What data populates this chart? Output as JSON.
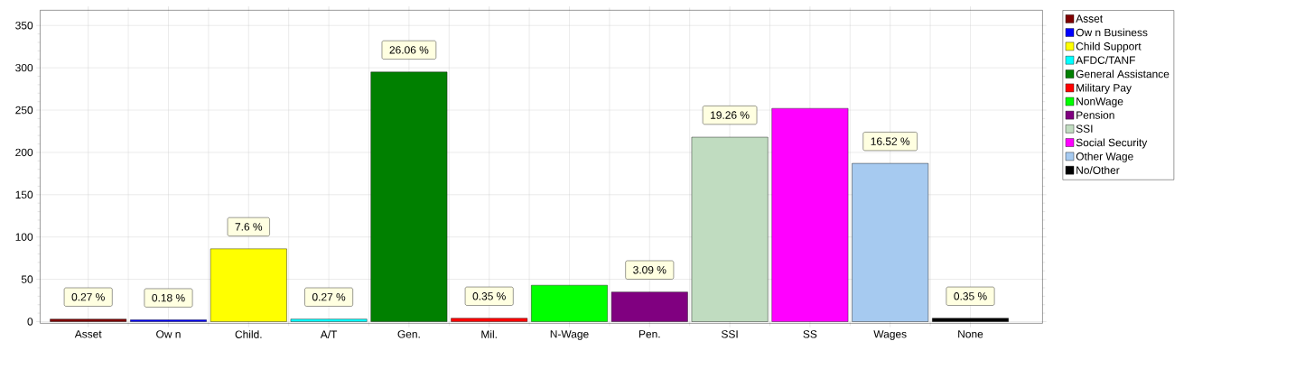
{
  "chart_data": {
    "type": "bar",
    "categories": [
      "Asset",
      "Ow n",
      "Child.",
      "A/T",
      "Gen.",
      "Mil.",
      "N-Wage",
      "Pen.",
      "SSI",
      "SS",
      "Wages",
      "None"
    ],
    "series": [
      {
        "name": "Asset",
        "color": "#800000",
        "values": [
          3,
          null,
          null,
          null,
          null,
          null,
          null,
          null,
          null,
          null,
          null,
          null
        ]
      },
      {
        "name": "Ow n Business",
        "color": "#0000ff",
        "values": [
          null,
          2,
          null,
          null,
          null,
          null,
          null,
          null,
          null,
          null,
          null,
          null
        ]
      },
      {
        "name": "Child Support",
        "color": "#ffff00",
        "values": [
          null,
          null,
          86,
          null,
          null,
          null,
          null,
          null,
          null,
          null,
          null,
          null
        ]
      },
      {
        "name": "AFDC/TANF",
        "color": "#00ffff",
        "values": [
          null,
          null,
          null,
          3,
          null,
          null,
          null,
          null,
          null,
          null,
          null,
          null
        ]
      },
      {
        "name": "General Assistance",
        "color": "#008000",
        "values": [
          null,
          null,
          null,
          null,
          295,
          null,
          null,
          null,
          null,
          null,
          null,
          null
        ]
      },
      {
        "name": "Military Pay",
        "color": "#ff0000",
        "values": [
          null,
          null,
          null,
          null,
          null,
          4,
          null,
          null,
          null,
          null,
          null,
          null
        ]
      },
      {
        "name": "NonWage",
        "color": "#00ff00",
        "values": [
          null,
          null,
          null,
          null,
          null,
          null,
          43,
          null,
          null,
          null,
          null,
          null
        ]
      },
      {
        "name": "Pension",
        "color": "#800080",
        "values": [
          null,
          null,
          null,
          null,
          null,
          null,
          null,
          35,
          null,
          null,
          null,
          null
        ]
      },
      {
        "name": "SSI",
        "color": "#c0dcc0",
        "values": [
          null,
          null,
          null,
          null,
          null,
          null,
          null,
          null,
          218,
          null,
          null,
          null
        ]
      },
      {
        "name": "Social Security",
        "color": "#ff00ff",
        "values": [
          null,
          null,
          null,
          null,
          null,
          null,
          null,
          null,
          null,
          252,
          null,
          null
        ]
      },
      {
        "name": "Other Wage",
        "color": "#a6caf0",
        "values": [
          null,
          null,
          null,
          null,
          null,
          null,
          null,
          null,
          null,
          null,
          187,
          null
        ]
      },
      {
        "name": "No/Other",
        "color": "#000000",
        "values": [
          null,
          null,
          null,
          null,
          null,
          null,
          null,
          null,
          null,
          null,
          null,
          4
        ]
      }
    ],
    "annotations": [
      {
        "text": "0.27 %",
        "x": "Asset",
        "y": 3
      },
      {
        "text": "0.18 %",
        "x": "Ow n",
        "y": 2
      },
      {
        "text": "7.6 %",
        "x": "Child.",
        "y": 86
      },
      {
        "text": "0.27 %",
        "x": "A/T",
        "y": 3
      },
      {
        "text": "26.06 %",
        "x": "Gen.",
        "y": 295
      },
      {
        "text": "0.35 %",
        "x": "Mil.",
        "y": 4
      },
      {
        "text": "3.09 %",
        "x": "Pen.",
        "y": 35
      },
      {
        "text": "19.26 %",
        "x": "SSI",
        "y": 218
      },
      {
        "text": "16.52 %",
        "x": "Wages",
        "y": 187
      },
      {
        "text": "0.35 %",
        "x": "None",
        "y": 4
      }
    ],
    "ylim": [
      -2,
      368
    ],
    "yticks": [
      0,
      50,
      100,
      150,
      200,
      250,
      300,
      350
    ],
    "grid": true,
    "legend": "right"
  }
}
